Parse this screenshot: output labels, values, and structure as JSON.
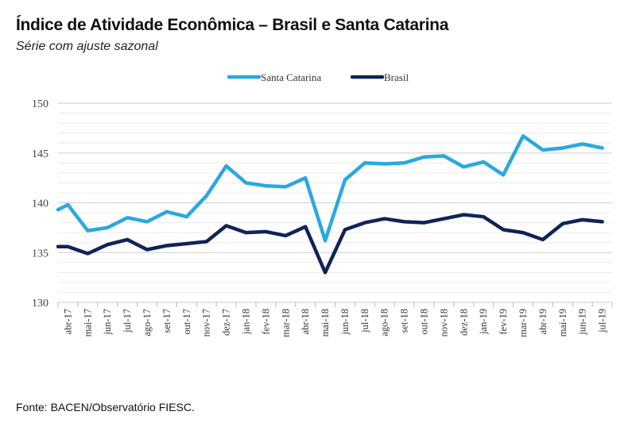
{
  "header": {
    "title": "Índice de Atividade Econômica – Brasil e Santa Catarina",
    "subtitle": "Série com ajuste sazonal"
  },
  "footer": {
    "source": "Fonte: BACEN/Observatório FIESC."
  },
  "chart_data": {
    "type": "line",
    "title": "Índice de Atividade Econômica – Brasil e Santa Catarina",
    "subtitle": "Série com ajuste sazonal",
    "categories": [
      "abr-17",
      "mai-17",
      "jun-17",
      "jul-17",
      "ago-17",
      "set-17",
      "out-17",
      "nov-17",
      "dez-17",
      "jan-18",
      "fev-18",
      "mar-18",
      "abr-18",
      "mai-18",
      "jun-18",
      "jul-18",
      "ago-18",
      "set-18",
      "out-18",
      "nov-18",
      "dez-18",
      "jan-19",
      "fev-19",
      "mar-19",
      "abr-19",
      "mai-19",
      "jun-19",
      "jul-19"
    ],
    "series": [
      {
        "name": "Santa Catarina",
        "color": "#29A8E0",
        "values": [
          139.8,
          137.2,
          137.5,
          138.5,
          138.1,
          139.1,
          138.6,
          140.7,
          143.7,
          142.0,
          141.7,
          141.6,
          142.5,
          136.2,
          142.3,
          144.0,
          143.9,
          144.0,
          144.6,
          144.7,
          143.6,
          144.1,
          142.8,
          146.7,
          145.3,
          145.5,
          145.9,
          145.5
        ]
      },
      {
        "name": "Brasil",
        "color": "#0F2456",
        "values": [
          135.6,
          134.9,
          135.8,
          136.3,
          135.3,
          135.7,
          135.9,
          136.1,
          137.7,
          137.0,
          137.1,
          136.7,
          137.6,
          133.0,
          137.3,
          138.0,
          138.4,
          138.1,
          138.0,
          138.4,
          138.8,
          138.6,
          137.3,
          137.0,
          136.3,
          137.9,
          138.3,
          138.1
        ]
      }
    ],
    "ylim": [
      130,
      150
    ],
    "yticks": [
      130,
      135,
      140,
      145,
      150
    ],
    "grid": true,
    "legend": "top-center"
  }
}
